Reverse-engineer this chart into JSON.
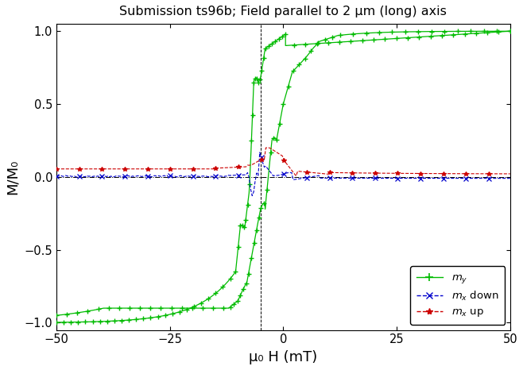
{
  "title": "Submission ts96b; Field parallel to 2 μm (long) axis",
  "xlabel": "μ₀ H (mT)",
  "ylabel": "M/M₀",
  "xlim": [
    -50,
    50
  ],
  "ylim": [
    -1.05,
    1.05
  ],
  "yticks": [
    -1.0,
    -0.5,
    0.0,
    0.5,
    1.0
  ],
  "xticks": [
    -50,
    -25,
    0,
    25,
    50
  ],
  "bg_color": "#ffffff",
  "my_color": "#00bb00",
  "mx_down_color": "#0000cc",
  "mx_up_color": "#cc0000",
  "vline_x": -5.0,
  "figsize": [
    6.58,
    4.66
  ],
  "dpi": 100
}
